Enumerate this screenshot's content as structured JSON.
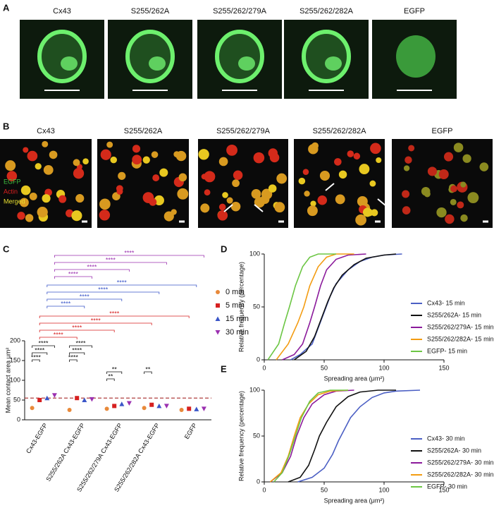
{
  "figure": {
    "panel_labels": [
      "A",
      "B",
      "C",
      "D",
      "E"
    ],
    "panel_a_labels": [
      "Cx43",
      "S255/262A",
      "S255/262/279A",
      "S255/262/282A",
      "EGFP"
    ],
    "panel_b_labels": [
      "Cx43",
      "S255/262A",
      "S255/262/279A",
      "S255/262/282A",
      "EGFP"
    ],
    "panel_b_channels": [
      {
        "text": "EGFP",
        "color": "#3fbf3f"
      },
      {
        "text": "Actin",
        "color": "#e02020"
      },
      {
        "text": "Merged",
        "color": "#e8e030"
      }
    ]
  },
  "chart_data": [
    {
      "type": "dot",
      "ylabel": "Mean contact area μm²",
      "categories": [
        "Cx43-EGFP",
        "S255/262A Cx43-EGFP",
        "S255/262/279A Cx43-EGFP",
        "S255/262/282A Cx43-EGFP",
        "EGFP"
      ],
      "series": [
        {
          "name": "0 min",
          "color": "#e8893a",
          "marker": "circle",
          "values": [
            30,
            25,
            28,
            30,
            25
          ]
        },
        {
          "name": "5 min",
          "color": "#d62020",
          "marker": "square",
          "values": [
            50,
            55,
            35,
            38,
            28
          ]
        },
        {
          "name": "15 min",
          "color": "#3a55c8",
          "marker": "triangle",
          "values": [
            55,
            50,
            40,
            35,
            27
          ]
        },
        {
          "name": "30 min",
          "color": "#9b30b0",
          "marker": "triangle-down",
          "values": [
            62,
            52,
            42,
            35,
            28
          ]
        }
      ],
      "ylim": [
        0,
        200
      ],
      "yticks": [
        0,
        50,
        100,
        150,
        200
      ],
      "reference_line": 55,
      "reference_color": "#a52a2a",
      "annotations": [
        {
          "text": "****",
          "color": "#9b30b0"
        },
        {
          "text": "****",
          "color": "#9b30b0"
        },
        {
          "text": "****",
          "color": "#9b30b0"
        },
        {
          "text": "****",
          "color": "#9b30b0"
        },
        {
          "text": "****",
          "color": "#3a55c8"
        },
        {
          "text": "****",
          "color": "#3a55c8"
        },
        {
          "text": "****",
          "color": "#3a55c8"
        },
        {
          "text": "****",
          "color": "#3a55c8"
        },
        {
          "text": "****",
          "color": "#d62020"
        },
        {
          "text": "****",
          "color": "#d62020"
        },
        {
          "text": "****",
          "color": "#d62020"
        },
        {
          "text": "****",
          "color": "#d62020"
        },
        {
          "text": "****",
          "color": "#111111"
        },
        {
          "text": "****",
          "color": "#111111"
        },
        {
          "text": "****",
          "color": "#111111"
        },
        {
          "text": "****",
          "color": "#111111"
        },
        {
          "text": "****",
          "color": "#111111"
        },
        {
          "text": "****",
          "color": "#111111"
        },
        {
          "text": "**",
          "color": "#111111"
        },
        {
          "text": "**",
          "color": "#111111"
        },
        {
          "text": "**",
          "color": "#111111"
        }
      ]
    },
    {
      "type": "line",
      "xlabel": "Spreading area (μm²)",
      "ylabel": "Relative frequency (percentage)",
      "xlim": [
        0,
        150
      ],
      "xticks": [
        0,
        50,
        100,
        150
      ],
      "ylim": [
        0,
        100
      ],
      "yticks": [
        0,
        50,
        100
      ],
      "series": [
        {
          "name": "Cx43- 15 min",
          "color": "#4b5fc4",
          "x": [
            22,
            30,
            40,
            45,
            50,
            55,
            60,
            70,
            80,
            90,
            100,
            115
          ],
          "values": [
            0,
            5,
            15,
            30,
            45,
            60,
            72,
            85,
            93,
            97,
            99,
            100
          ]
        },
        {
          "name": "S255/262A- 15 min",
          "color": "#111111",
          "x": [
            25,
            35,
            42,
            48,
            53,
            58,
            65,
            75,
            85,
            100,
            110
          ],
          "values": [
            0,
            8,
            22,
            40,
            55,
            68,
            80,
            90,
            96,
            99,
            100
          ]
        },
        {
          "name": "S255/262/279A- 15 min",
          "color": "#8b1a9b",
          "x": [
            15,
            25,
            32,
            38,
            42,
            47,
            52,
            60,
            70,
            85
          ],
          "values": [
            0,
            5,
            15,
            35,
            50,
            70,
            85,
            95,
            99,
            100
          ]
        },
        {
          "name": "S255/262/282A- 15 min",
          "color": "#f39c12",
          "x": [
            10,
            20,
            28,
            33,
            38,
            45,
            52,
            60,
            75
          ],
          "values": [
            0,
            15,
            35,
            50,
            70,
            88,
            97,
            100,
            100
          ]
        },
        {
          "name": "EGFP- 15 min",
          "color": "#6cc644",
          "x": [
            3,
            12,
            17,
            21,
            26,
            32,
            38,
            45,
            60
          ],
          "values": [
            0,
            15,
            35,
            50,
            70,
            88,
            97,
            100,
            100
          ]
        }
      ]
    },
    {
      "type": "line",
      "xlabel": "Spreading area (μm²)",
      "ylabel": "Relative frequency (percentage)",
      "xlim": [
        0,
        150
      ],
      "xticks": [
        0,
        50,
        100,
        150
      ],
      "ylim": [
        0,
        100
      ],
      "yticks": [
        0,
        50,
        100
      ],
      "series": [
        {
          "name": "Cx43- 30 min",
          "color": "#4b5fc4",
          "x": [
            28,
            40,
            50,
            57,
            62,
            66,
            72,
            80,
            90,
            100,
            110,
            130
          ],
          "values": [
            0,
            5,
            15,
            30,
            45,
            55,
            70,
            82,
            92,
            97,
            99,
            100
          ]
        },
        {
          "name": "S255/262A- 30 min",
          "color": "#111111",
          "x": [
            20,
            30,
            37,
            42,
            46,
            52,
            60,
            70,
            80,
            95,
            110
          ],
          "values": [
            0,
            5,
            18,
            35,
            50,
            65,
            82,
            93,
            98,
            100,
            100
          ]
        },
        {
          "name": "S255/262/279A- 30 min",
          "color": "#8b1a9b",
          "x": [
            5,
            15,
            22,
            27,
            33,
            40,
            50,
            60,
            75
          ],
          "values": [
            0,
            10,
            28,
            50,
            70,
            85,
            95,
            99,
            100
          ]
        },
        {
          "name": "S255/262/282A- 30 min",
          "color": "#f39c12",
          "x": [
            5,
            14,
            20,
            25,
            30,
            37,
            45,
            55,
            70
          ],
          "values": [
            0,
            10,
            28,
            50,
            70,
            85,
            95,
            99,
            100
          ]
        },
        {
          "name": "EGFP- 30 min",
          "color": "#6cc644",
          "x": [
            8,
            15,
            21,
            26,
            31,
            38,
            45,
            55,
            70
          ],
          "values": [
            0,
            10,
            30,
            50,
            70,
            88,
            97,
            100,
            100
          ]
        }
      ]
    }
  ]
}
